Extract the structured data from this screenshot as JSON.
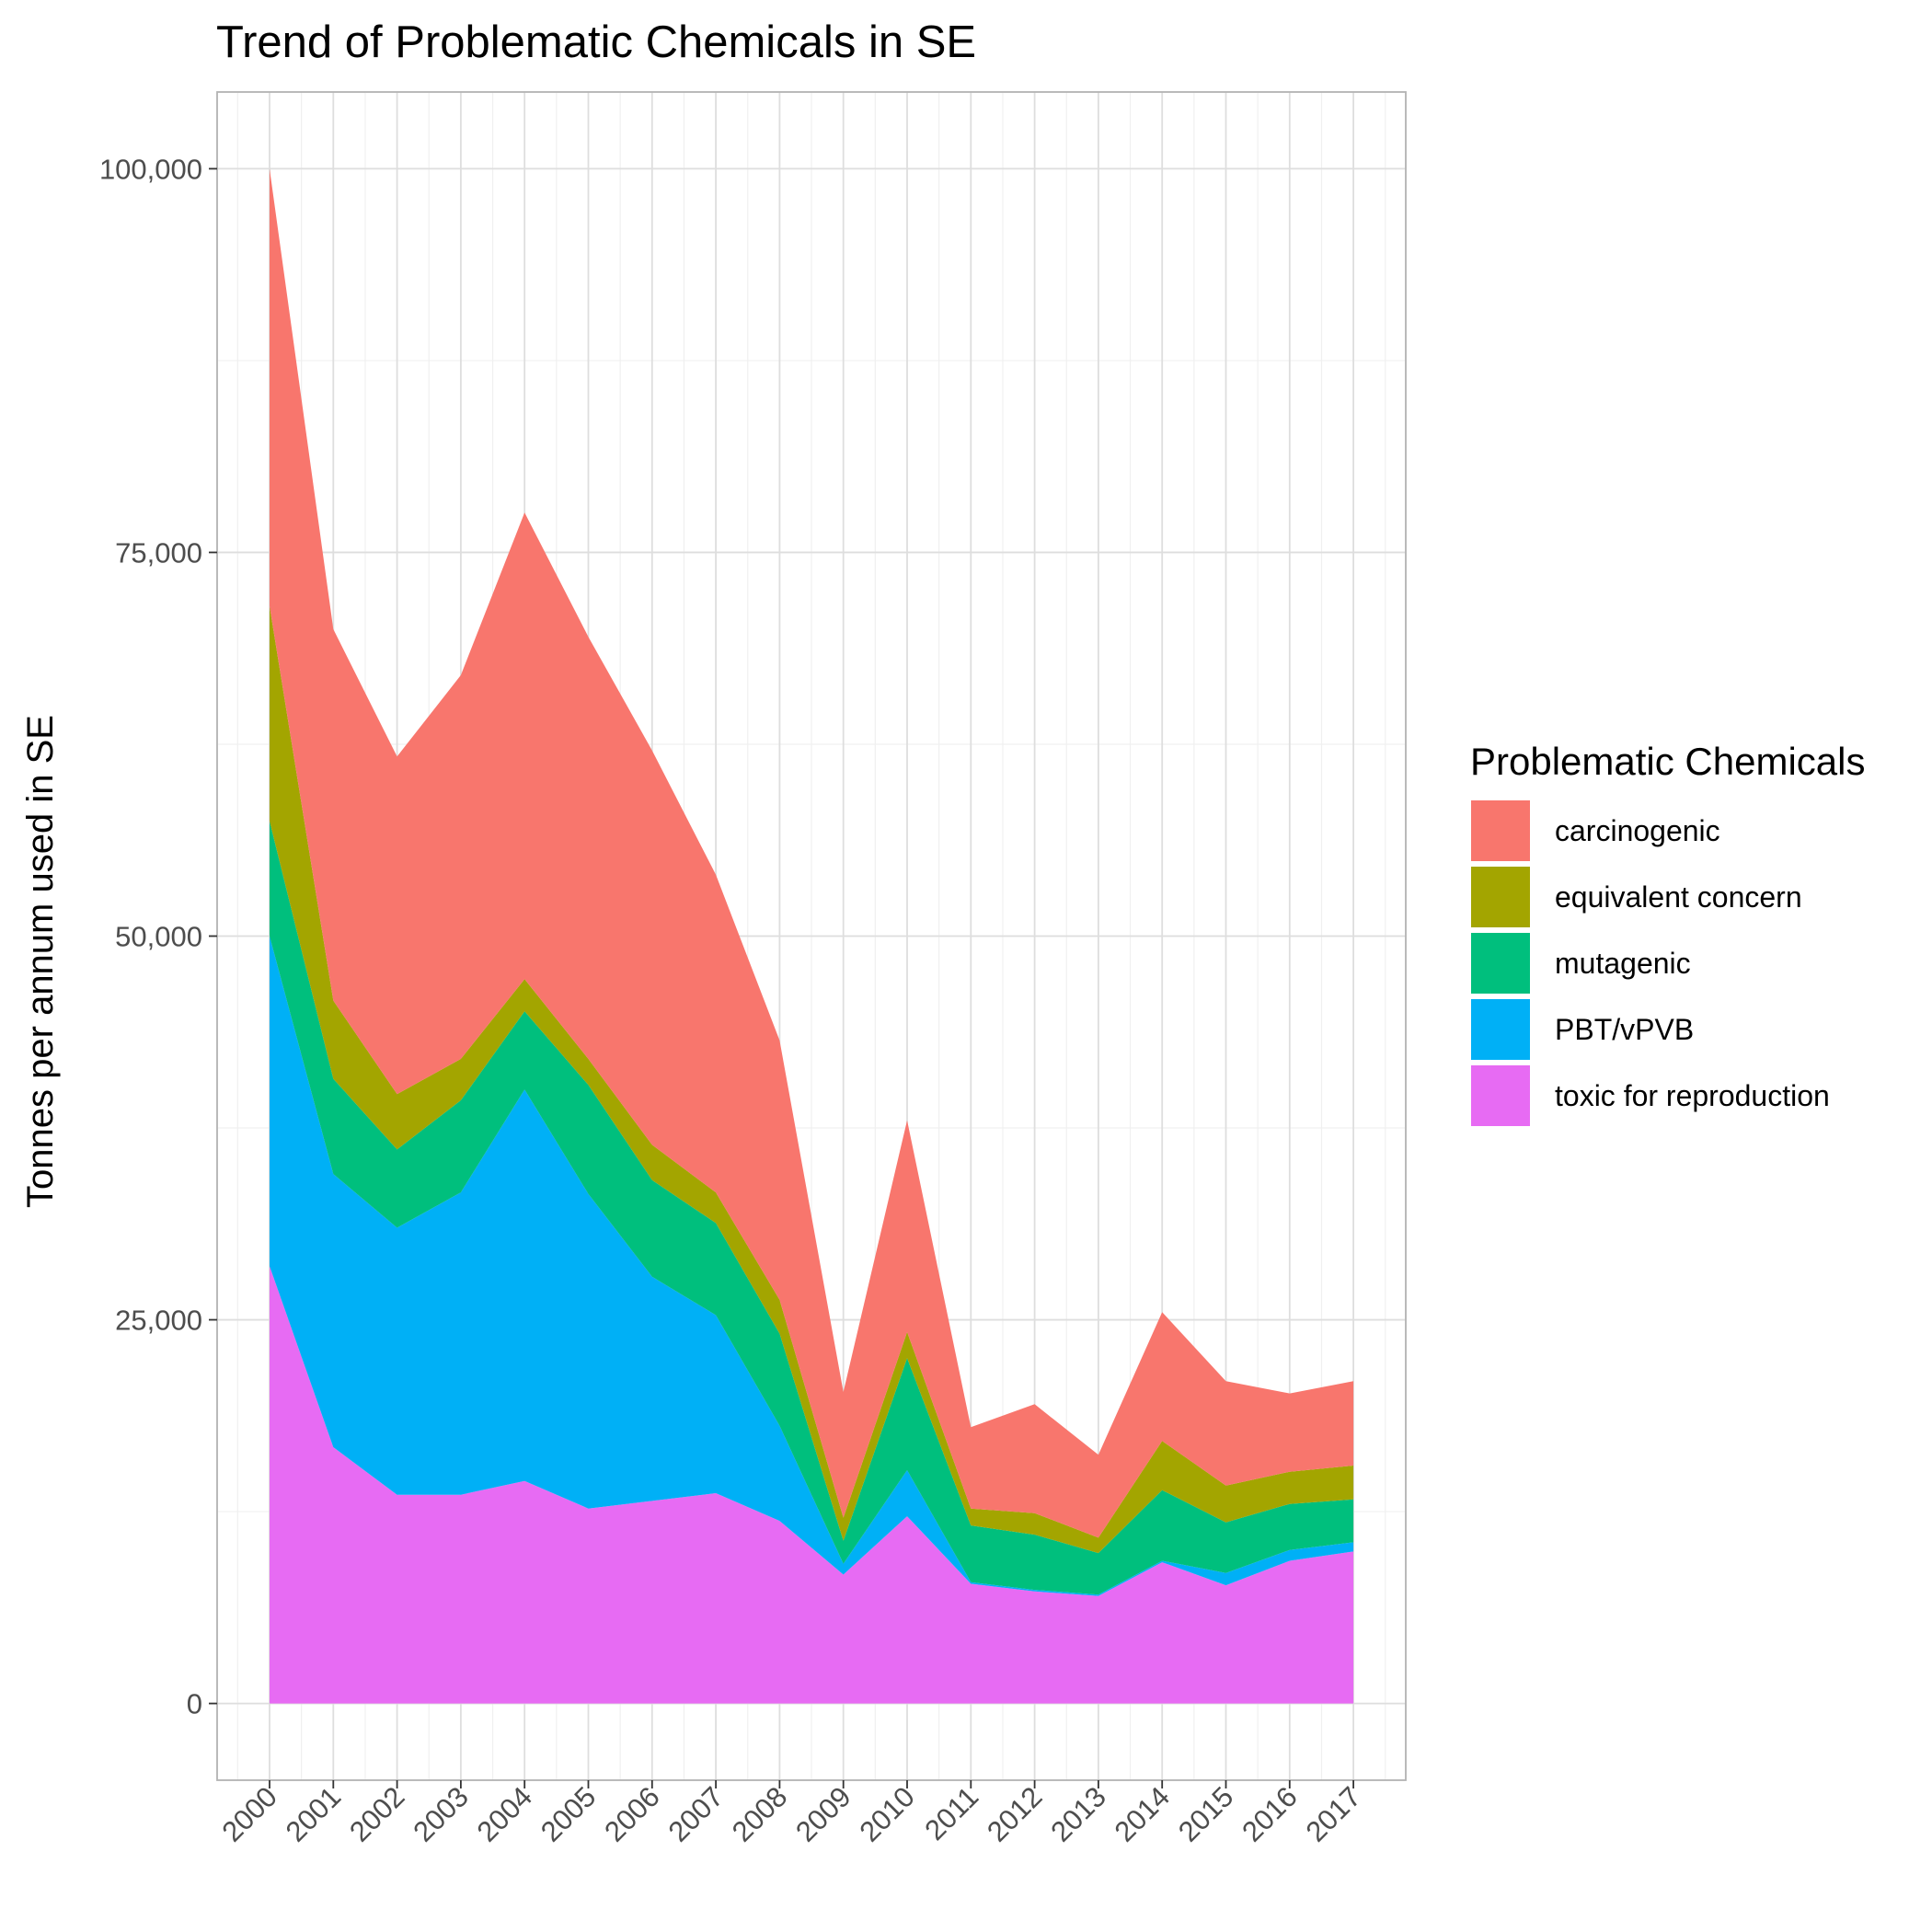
{
  "chart_data": {
    "type": "area",
    "stacked": true,
    "title": "Trend of Problematic Chemicals in SE",
    "xlabel": "",
    "ylabel": "Tonnes per annum used in SE",
    "x": [
      "2000",
      "2001",
      "2002",
      "2003",
      "2004",
      "2005",
      "2006",
      "2007",
      "2008",
      "2009",
      "2010",
      "2011",
      "2012",
      "2013",
      "2014",
      "2015",
      "2016",
      "2017"
    ],
    "y_ticks": [
      0,
      25000,
      50000,
      75000,
      100000
    ],
    "y_tick_labels": [
      "0",
      "25,000",
      "50,000",
      "75,000",
      "100,000"
    ],
    "ylim": [
      -5000,
      105000
    ],
    "grid": true,
    "legend": {
      "title": "Problematic Chemicals",
      "position": "right"
    },
    "series": [
      {
        "name": "toxic for reproduction",
        "color": "#E76BF3",
        "values": [
          28500,
          16700,
          13600,
          13600,
          14500,
          12700,
          13200,
          13700,
          11900,
          8400,
          12200,
          7800,
          7300,
          7000,
          9200,
          7700,
          9300,
          9900
        ]
      },
      {
        "name": "PBT/vPVB",
        "color": "#00B0F6",
        "values": [
          21500,
          17800,
          17400,
          19700,
          25500,
          20500,
          14600,
          11600,
          6200,
          700,
          3000,
          100,
          100,
          100,
          100,
          800,
          700,
          600
        ]
      },
      {
        "name": "mutagenic",
        "color": "#00BF7D",
        "values": [
          7500,
          6200,
          5100,
          6000,
          5100,
          7100,
          6300,
          6000,
          6000,
          1500,
          7300,
          3700,
          3600,
          2700,
          4600,
          3300,
          3000,
          2800
        ]
      },
      {
        "name": "equivalent concern",
        "color": "#A3A500",
        "values": [
          14000,
          5100,
          3600,
          2700,
          2100,
          1700,
          2300,
          2000,
          2200,
          1500,
          1700,
          1100,
          1400,
          1000,
          3200,
          2400,
          2100,
          2200
        ]
      },
      {
        "name": "carcinogenic",
        "color": "#F8766D",
        "values": [
          28500,
          24200,
          22000,
          25000,
          30400,
          27500,
          25700,
          20700,
          16900,
          8200,
          13800,
          5300,
          7100,
          5400,
          8400,
          6800,
          5100,
          5500
        ]
      }
    ],
    "legend_order": [
      "carcinogenic",
      "equivalent concern",
      "mutagenic",
      "PBT/vPVB",
      "toxic for reproduction"
    ]
  }
}
